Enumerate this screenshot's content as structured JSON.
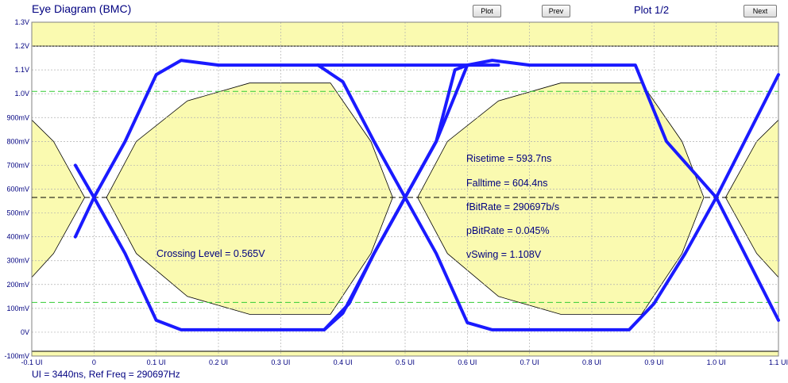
{
  "header": {
    "title": "Eye Diagram (BMC)",
    "plot_button": "Plot",
    "prev_button": "Prev",
    "plot_indicator": "Plot 1/2",
    "next_button": "Next"
  },
  "footer": {
    "text": "UI = 3440ns, Ref Freq = 290697Hz"
  },
  "measurements": {
    "crossing_level": "Crossing Level = 0.565V",
    "risetime": "Risetime = 593.7ns",
    "falltime": "Falltime = 604.4ns",
    "fbitrate": "fBitRate = 290697b/s",
    "pbitrate": "pBitRate = 0.045%",
    "vswing": "vSwing = 1.108V"
  },
  "chart_data": {
    "type": "line",
    "title": "Eye Diagram (BMC)",
    "xlabel": "",
    "ylabel": "",
    "x_unit": "UI",
    "y_unit": "V",
    "xlim": [
      -0.1,
      1.1
    ],
    "ylim": [
      -0.1,
      1.3
    ],
    "grid": true,
    "x_ticks": [
      -0.1,
      0,
      0.1,
      0.2,
      0.3,
      0.4,
      0.5,
      0.6,
      0.7,
      0.8,
      0.9,
      1.0,
      1.1
    ],
    "x_tick_labels": [
      "-0.1 UI",
      "0",
      "0.1 UI",
      "0.2 UI",
      "0.3 UI",
      "0.4 UI",
      "0.5 UI",
      "0.6 UI",
      "0.7 UI",
      "0.8 UI",
      "0.9 UI",
      "1.0 UI",
      "1.1 UI"
    ],
    "y_ticks": [
      1.3,
      1.2,
      1.1,
      1.0,
      0.9,
      0.8,
      0.7,
      0.6,
      0.5,
      0.4,
      0.3,
      0.2,
      0.1,
      0,
      -0.1
    ],
    "y_tick_labels": [
      "1.3V",
      "1.2V",
      "1.1V",
      "1.0V",
      "900mV",
      "800mV",
      "700mV",
      "600mV",
      "500mV",
      "400mV",
      "300mV",
      "200mV",
      "100mV",
      "0V",
      "-100mV"
    ],
    "colors": {
      "trace": "#1a1aff",
      "mask_fill": "#fafab0",
      "mask_edge": "#000000",
      "threshold_lines": "#33cc33",
      "grid": "#b0b0b0",
      "text": "#000080"
    },
    "limits": {
      "upper_band_from": 1.2,
      "lower_band_to": -0.08
    },
    "crossing_level_v": 0.565,
    "thresholds_v": [
      1.01,
      0.125
    ],
    "high_level_v": 1.12,
    "low_level_v": 0.01,
    "mask": {
      "center_left": [
        [
          -0.1,
          0.89
        ],
        [
          -0.065,
          0.8
        ],
        [
          -0.015,
          0.565
        ],
        [
          -0.065,
          0.33
        ],
        [
          -0.1,
          0.23
        ]
      ],
      "eye_1": [
        [
          0.02,
          0.565
        ],
        [
          0.068,
          0.8
        ],
        [
          0.15,
          0.97
        ],
        [
          0.25,
          1.045
        ],
        [
          0.38,
          1.045
        ],
        [
          0.445,
          0.8
        ],
        [
          0.48,
          0.565
        ],
        [
          0.445,
          0.33
        ],
        [
          0.38,
          0.075
        ],
        [
          0.25,
          0.075
        ],
        [
          0.15,
          0.15
        ],
        [
          0.068,
          0.33
        ]
      ],
      "eye_2": [
        [
          0.52,
          0.565
        ],
        [
          0.568,
          0.8
        ],
        [
          0.65,
          0.97
        ],
        [
          0.75,
          1.045
        ],
        [
          0.88,
          1.045
        ],
        [
          0.945,
          0.8
        ],
        [
          0.98,
          0.565
        ],
        [
          0.945,
          0.33
        ],
        [
          0.88,
          0.075
        ],
        [
          0.75,
          0.075
        ],
        [
          0.65,
          0.15
        ],
        [
          0.568,
          0.33
        ]
      ],
      "center_right": [
        [
          1.1,
          0.89
        ],
        [
          1.065,
          0.8
        ],
        [
          1.015,
          0.565
        ],
        [
          1.065,
          0.33
        ],
        [
          1.1,
          0.23
        ]
      ]
    },
    "series": [
      {
        "values": [
          [
            -0.03,
            0.4
          ],
          [
            0.0,
            0.565
          ],
          [
            0.05,
            0.8
          ],
          [
            0.1,
            1.08
          ],
          [
            0.14,
            1.14
          ],
          [
            0.2,
            1.12
          ],
          [
            0.38,
            1.12
          ],
          [
            0.5,
            1.12
          ],
          [
            0.6,
            1.12
          ],
          [
            0.64,
            1.14
          ],
          [
            0.7,
            1.12
          ],
          [
            0.87,
            1.12
          ],
          [
            0.92,
            0.8
          ],
          [
            1.0,
            0.565
          ],
          [
            1.1,
            1.08
          ]
        ]
      },
      {
        "values": [
          [
            -0.03,
            0.7
          ],
          [
            0.0,
            0.565
          ],
          [
            0.05,
            0.33
          ],
          [
            0.1,
            0.05
          ],
          [
            0.14,
            0.01
          ],
          [
            0.2,
            0.01
          ],
          [
            0.37,
            0.01
          ],
          [
            0.4,
            0.08
          ],
          [
            0.45,
            0.33
          ],
          [
            0.5,
            0.565
          ],
          [
            0.55,
            0.33
          ],
          [
            0.6,
            0.04
          ],
          [
            0.64,
            0.01
          ],
          [
            0.7,
            0.01
          ],
          [
            0.86,
            0.01
          ],
          [
            0.9,
            0.12
          ],
          [
            0.95,
            0.33
          ],
          [
            1.0,
            0.565
          ],
          [
            1.1,
            0.05
          ]
        ]
      },
      {
        "values": [
          [
            0.36,
            1.12
          ],
          [
            0.4,
            1.05
          ],
          [
            0.45,
            0.8
          ],
          [
            0.5,
            0.565
          ],
          [
            0.55,
            0.8
          ],
          [
            0.6,
            1.12
          ],
          [
            0.65,
            1.12
          ]
        ]
      },
      {
        "values": [
          [
            0.37,
            0.01
          ],
          [
            0.41,
            0.12
          ],
          [
            0.45,
            0.33
          ],
          [
            0.5,
            0.565
          ],
          [
            0.55,
            0.8
          ],
          [
            0.58,
            1.1
          ],
          [
            0.6,
            1.12
          ]
        ]
      }
    ]
  }
}
